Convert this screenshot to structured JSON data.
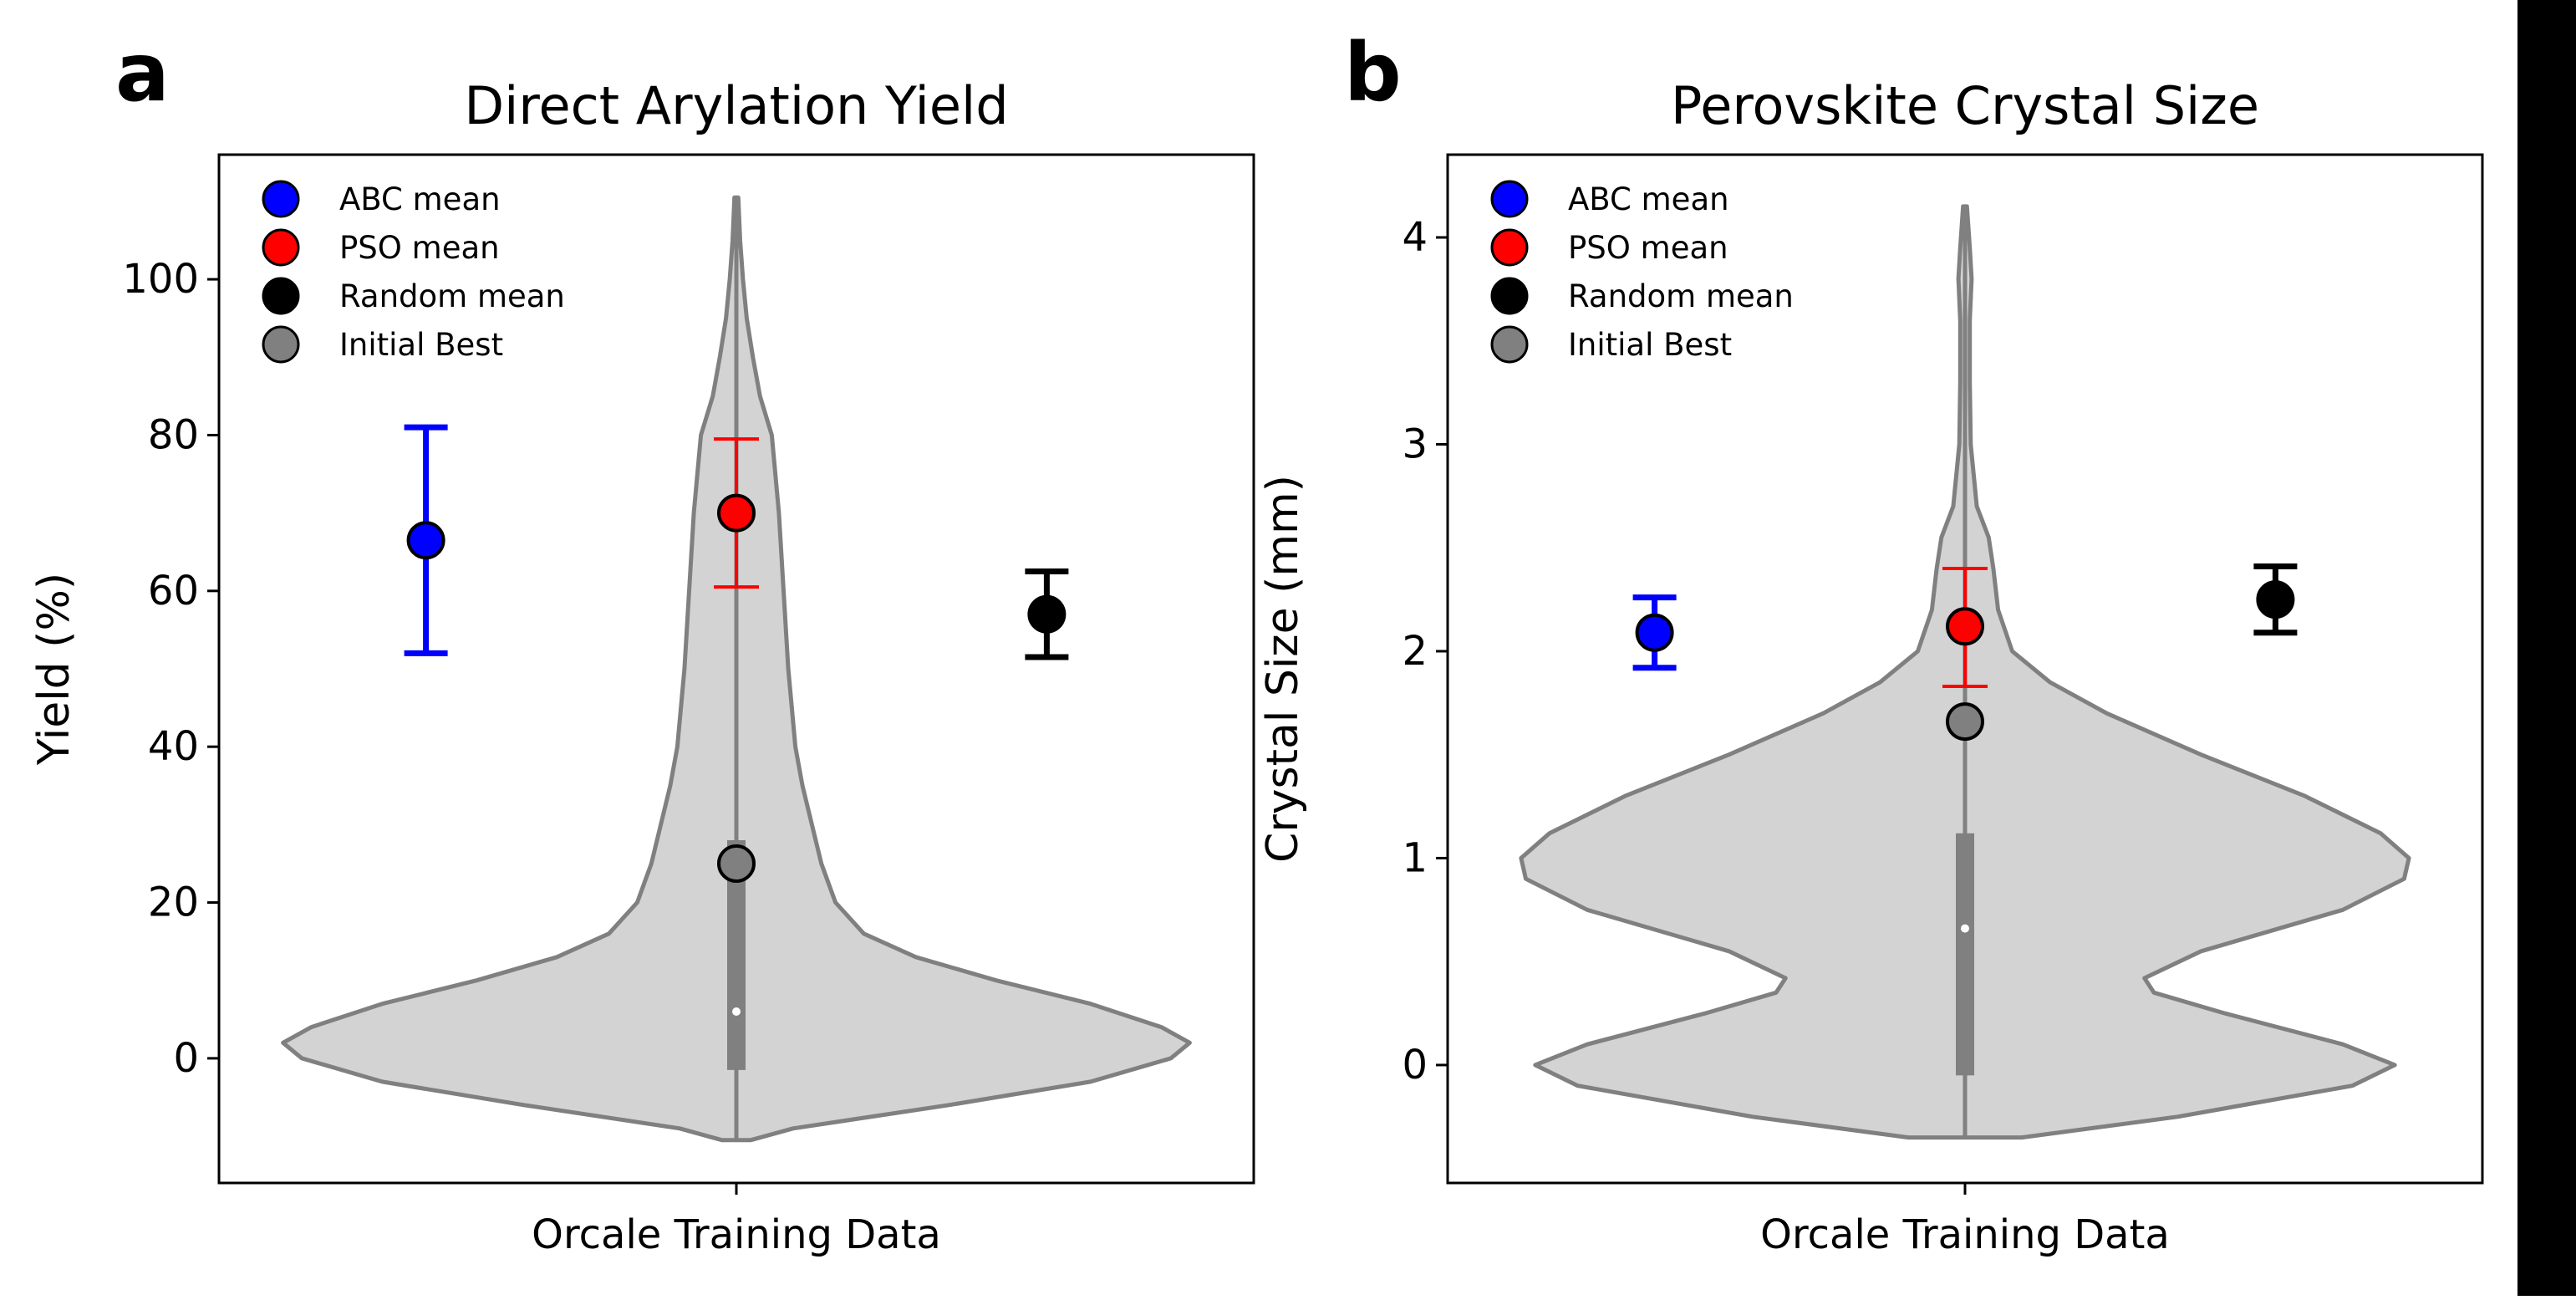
{
  "chart_data": [
    {
      "type": "violin",
      "panel_label": "a",
      "title": "Direct Arylation Yield",
      "xlabel": "",
      "ylabel": "Yield (%)",
      "categories": [
        "Orcale Training Data"
      ],
      "ylim": [
        -16,
        116
      ],
      "yticks": [
        0,
        20,
        40,
        60,
        80,
        100
      ],
      "ytick_labels": [
        "0",
        "20",
        "40",
        "60",
        "80",
        "100"
      ],
      "grid": false,
      "legend_position": "upper-left",
      "violin": {
        "color": "#d3d3d3",
        "edge_color": "#808080",
        "min": -10.5,
        "max": 110.5,
        "profile": [
          [
            -10.5,
            0.03
          ],
          [
            -9,
            0.12
          ],
          [
            -6,
            0.45
          ],
          [
            -3,
            0.75
          ],
          [
            0,
            0.92
          ],
          [
            2,
            0.96
          ],
          [
            4,
            0.9
          ],
          [
            7,
            0.75
          ],
          [
            10,
            0.55
          ],
          [
            13,
            0.38
          ],
          [
            16,
            0.27
          ],
          [
            20,
            0.21
          ],
          [
            25,
            0.18
          ],
          [
            30,
            0.16
          ],
          [
            35,
            0.14
          ],
          [
            40,
            0.125
          ],
          [
            50,
            0.11
          ],
          [
            60,
            0.1
          ],
          [
            70,
            0.09
          ],
          [
            80,
            0.075
          ],
          [
            85,
            0.05
          ],
          [
            90,
            0.035
          ],
          [
            95,
            0.022
          ],
          [
            100,
            0.014
          ],
          [
            105,
            0.008
          ],
          [
            110.5,
            0.004
          ]
        ],
        "box": {
          "q1": -1.5,
          "q3": 28,
          "median": 6
        }
      },
      "series": [
        {
          "name": "ABC mean",
          "color": "#0000ff",
          "x_offset": -0.3,
          "mean": 66.5,
          "err_low": 52,
          "err_high": 81
        },
        {
          "name": "PSO mean",
          "color": "#ff0000",
          "x_offset": 0.0,
          "mean": 70,
          "err_low": 60.5,
          "err_high": 79.5
        },
        {
          "name": "Random mean",
          "color": "#000000",
          "x_offset": 0.3,
          "mean": 57,
          "err_low": 51.5,
          "err_high": 62.5
        },
        {
          "name": "Initial Best",
          "color": "#808080",
          "x_offset": 0.0,
          "mean": 25,
          "err_low": null,
          "err_high": null
        }
      ]
    },
    {
      "type": "violin",
      "panel_label": "b",
      "title": "Perovskite Crystal Size",
      "xlabel": "",
      "ylabel": "Crystal Size (mm)",
      "categories": [
        "Orcale Training Data"
      ],
      "ylim": [
        -0.57,
        4.4
      ],
      "yticks": [
        0,
        1,
        2,
        3,
        4
      ],
      "ytick_labels": [
        "0",
        "1",
        "2",
        "3",
        "4"
      ],
      "grid": false,
      "legend_position": "upper-left",
      "violin": {
        "color": "#d3d3d3",
        "edge_color": "#808080",
        "min": -0.35,
        "max": 4.15,
        "profile": [
          [
            -0.35,
            0.12
          ],
          [
            -0.25,
            0.45
          ],
          [
            -0.1,
            0.82
          ],
          [
            0.0,
            0.91
          ],
          [
            0.1,
            0.8
          ],
          [
            0.25,
            0.55
          ],
          [
            0.35,
            0.4
          ],
          [
            0.42,
            0.38
          ],
          [
            0.55,
            0.5
          ],
          [
            0.75,
            0.8
          ],
          [
            0.9,
            0.93
          ],
          [
            1.0,
            0.94
          ],
          [
            1.12,
            0.88
          ],
          [
            1.3,
            0.72
          ],
          [
            1.5,
            0.5
          ],
          [
            1.7,
            0.3
          ],
          [
            1.85,
            0.18
          ],
          [
            2.0,
            0.1
          ],
          [
            2.2,
            0.07
          ],
          [
            2.4,
            0.06
          ],
          [
            2.55,
            0.05
          ],
          [
            2.7,
            0.025
          ],
          [
            3.0,
            0.012
          ],
          [
            3.3,
            0.01
          ],
          [
            3.6,
            0.01
          ],
          [
            3.8,
            0.014
          ],
          [
            3.95,
            0.01
          ],
          [
            4.15,
            0.004
          ]
        ],
        "box": {
          "q1": -0.05,
          "q3": 1.12,
          "median": 0.66
        }
      },
      "series": [
        {
          "name": "ABC mean",
          "color": "#0000ff",
          "x_offset": -0.3,
          "mean": 2.09,
          "err_low": 1.92,
          "err_high": 2.26
        },
        {
          "name": "PSO mean",
          "color": "#ff0000",
          "x_offset": 0.0,
          "mean": 2.12,
          "err_low": 1.83,
          "err_high": 2.4
        },
        {
          "name": "Random mean",
          "color": "#000000",
          "x_offset": 0.3,
          "mean": 2.25,
          "err_low": 2.09,
          "err_high": 2.41
        },
        {
          "name": "Initial Best",
          "color": "#808080",
          "x_offset": 0.0,
          "mean": 1.66,
          "err_low": null,
          "err_high": null
        }
      ]
    }
  ]
}
